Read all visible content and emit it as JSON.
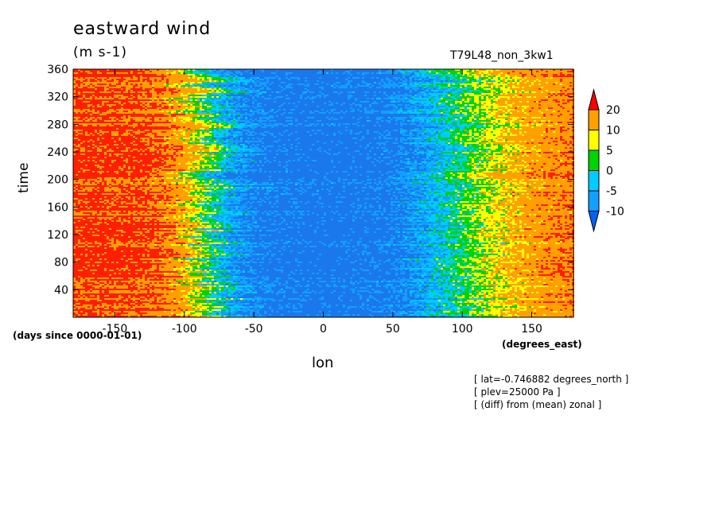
{
  "title": "eastward wind",
  "units": "(m s-1)",
  "run_name": "T79L48_non_3kw1",
  "x_axis_label": "lon",
  "x_axis_units": "(degrees_east)",
  "y_axis_label": "time",
  "y_axis_units": "(days since 0000-01-01)",
  "notes": [
    "[ lat=-0.746882 degrees_north ]",
    "[ plev=25000 Pa ]",
    "[ (diff) from (mean) zonal ]"
  ],
  "colors": {
    "blue": "#1b78ec",
    "cyan": "#00ccff",
    "light_blue": "#11a0ff",
    "green": "#00d400",
    "yellow": "#ffff00",
    "orange": "#ffa000",
    "red": "#ff1e00",
    "deep_blue": "#0064f0",
    "deep_red": "#ff0000"
  },
  "chart_data": {
    "type": "heatmap",
    "x_label": "lon",
    "y_label": "time",
    "xlim": [
      -180,
      180
    ],
    "ylim": [
      0,
      360
    ],
    "x_ticks": [
      -150,
      -100,
      -50,
      0,
      50,
      100,
      150
    ],
    "y_ticks": [
      40,
      80,
      120,
      160,
      200,
      240,
      280,
      320,
      360
    ],
    "color_levels": [
      -10,
      -5,
      0,
      5,
      10,
      20
    ],
    "colorbar_labels": [
      "20",
      "10",
      "5",
      "0",
      "-5",
      "-10"
    ],
    "pattern_profile_lon": [
      -180,
      -150,
      -120,
      -100,
      -85,
      -70,
      -50,
      0,
      50,
      70,
      90,
      110,
      130,
      150,
      180
    ],
    "pattern_profile_value": [
      22,
      22,
      21,
      12,
      3,
      -6,
      -12,
      -14,
      -12,
      -7,
      -1,
      5,
      10,
      15,
      19
    ]
  }
}
